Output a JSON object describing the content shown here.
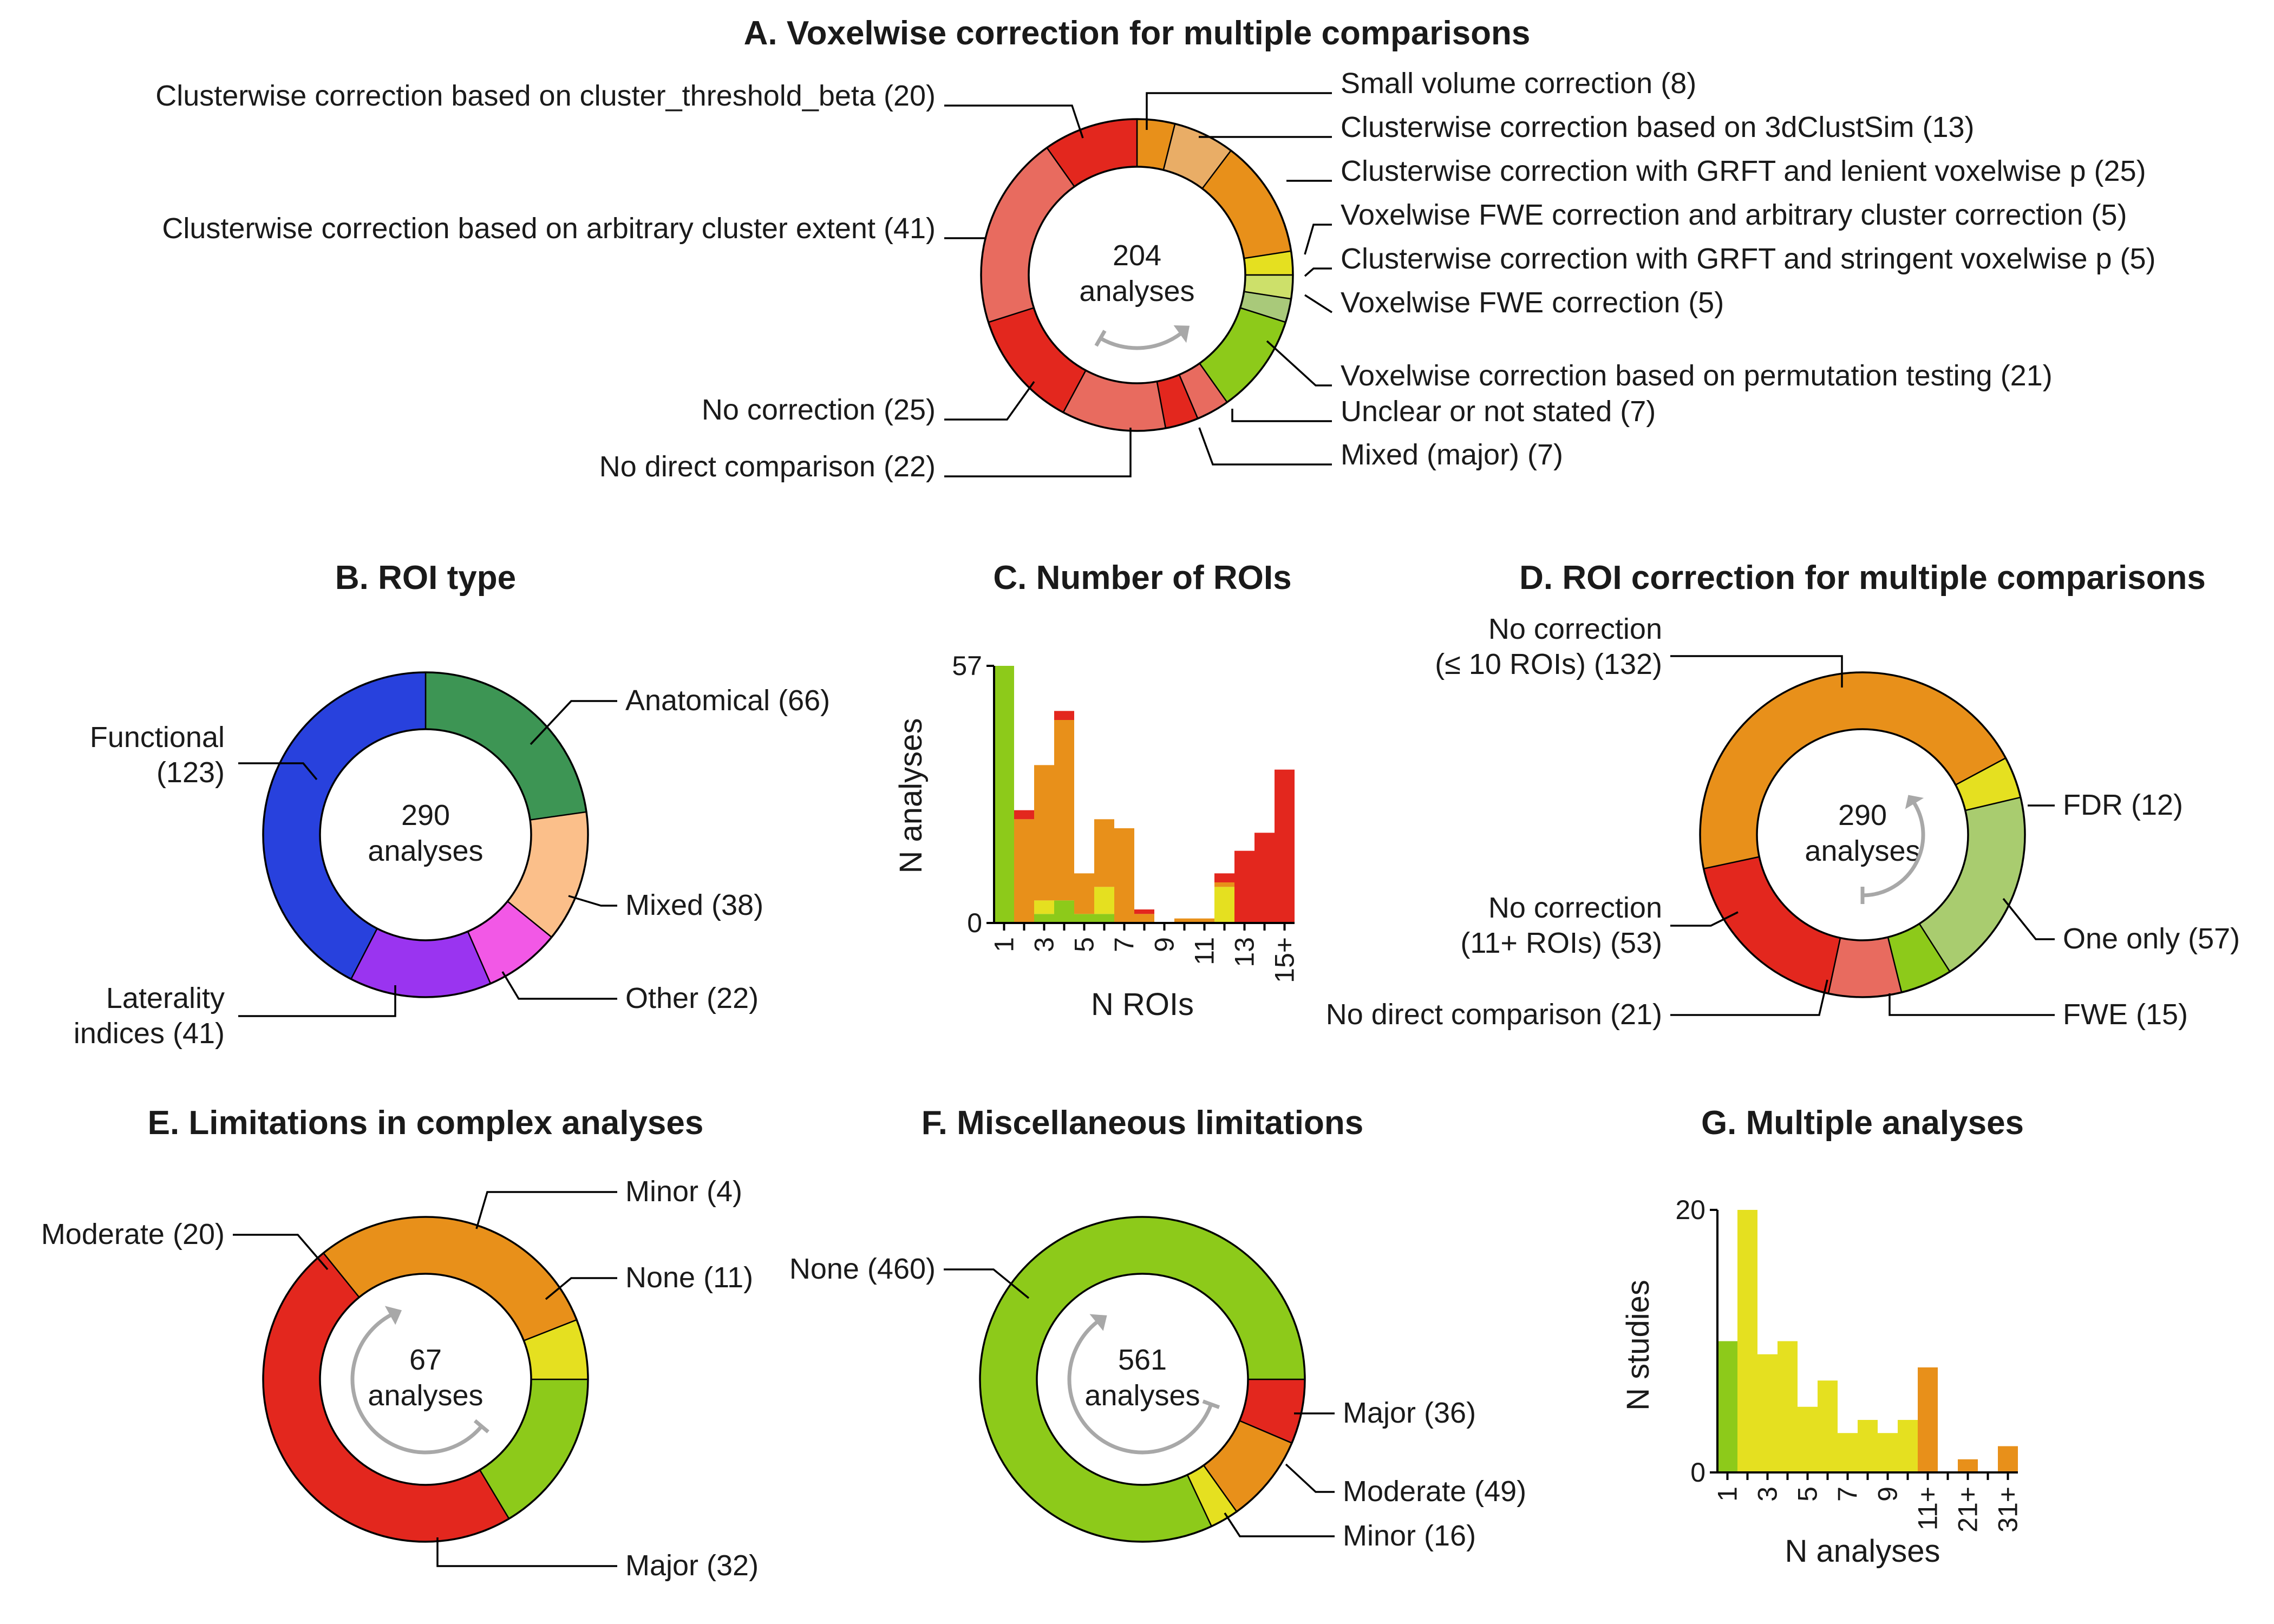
{
  "chart_data": [
    {
      "id": "A",
      "type": "pie",
      "title": "A. Voxelwise correction for multiple comparisons",
      "center_lines": [
        "204",
        "analyses"
      ],
      "slices": [
        {
          "label": "Small volume correction (8)",
          "value": 8,
          "color": "#e8901a"
        },
        {
          "label": "Clusterwise correction based on 3dClustSim (13)",
          "value": 13,
          "color": "#e9ad66"
        },
        {
          "label": "Clusterwise correction with GRFT and lenient voxelwise p (25)",
          "value": 25,
          "color": "#e8901a"
        },
        {
          "label": "Voxelwise FWE correction and arbitrary cluster correction (5)",
          "value": 5,
          "color": "#e5e020"
        },
        {
          "label": "Clusterwise correction with GRFT and stringent voxelwise p (5)",
          "value": 5,
          "color": "#cde06a"
        },
        {
          "label": "Voxelwise FWE correction (5)",
          "value": 5,
          "color": "#a9c97a"
        },
        {
          "label": "Voxelwise correction based on permutation testing (21)",
          "value": 21,
          "color": "#8dca1a"
        },
        {
          "label": "Unclear or not stated (7)",
          "value": 7,
          "color": "#e86b5f"
        },
        {
          "label": "Mixed (major) (7)",
          "value": 7,
          "color": "#e3271e"
        },
        {
          "label": "No direct comparison (22)",
          "value": 22,
          "color": "#e86b5f"
        },
        {
          "label": "No correction (25)",
          "value": 25,
          "color": "#e3271e"
        },
        {
          "label": "Clusterwise correction based on arbitrary cluster extent (41)",
          "value": 41,
          "color": "#e86b5f"
        },
        {
          "label": "Clusterwise correction based on cluster_threshold_beta (20)",
          "value": 20,
          "color": "#e3271e"
        }
      ]
    },
    {
      "id": "B",
      "type": "pie",
      "title": "B. ROI type",
      "center_lines": [
        "290",
        "analyses"
      ],
      "slices": [
        {
          "label": "Anatomical (66)",
          "value": 66,
          "color": "#3d9554"
        },
        {
          "label": "Mixed (38)",
          "value": 38,
          "color": "#fbbf8a"
        },
        {
          "label": "Other (22)",
          "value": 22,
          "color": "#f258e6"
        },
        {
          "label_lines": [
            "Laterality",
            "indices (41)"
          ],
          "value": 41,
          "color": "#9a34f0"
        },
        {
          "label_lines": [
            "Functional",
            "(123)"
          ],
          "value": 123,
          "color": "#2841dd"
        }
      ]
    },
    {
      "id": "C",
      "type": "bar",
      "stacked": true,
      "title": "C. Number of ROIs",
      "xlabel": "N ROIs",
      "ylabel": "N analyses",
      "ylim": [
        0,
        57
      ],
      "yticks": [
        "0",
        "57"
      ],
      "categories": [
        "1",
        "2",
        "3",
        "4",
        "5",
        "6",
        "7",
        "8",
        "9",
        "10",
        "11",
        "12",
        "13",
        "14",
        "15+"
      ],
      "xtick_labels": [
        "1",
        "",
        "3",
        "",
        "5",
        "",
        "7",
        "",
        "9",
        "",
        "11",
        "",
        "13",
        "",
        "15+"
      ],
      "series": [
        {
          "color": "#8dca1a",
          "values": [
            57,
            0,
            2,
            5,
            2,
            2,
            0,
            0,
            0,
            0,
            0,
            0,
            0,
            0,
            0
          ]
        },
        {
          "color": "#e5e020",
          "values": [
            0,
            0,
            3,
            0,
            0,
            6,
            0,
            0,
            0,
            0,
            0,
            8,
            0,
            0,
            0
          ]
        },
        {
          "color": "#e8901a",
          "values": [
            0,
            23,
            30,
            40,
            9,
            15,
            21,
            2,
            0,
            1,
            1,
            1,
            0,
            0,
            0
          ]
        },
        {
          "color": "#e3271e",
          "values": [
            0,
            2,
            0,
            2,
            0,
            0,
            0,
            1,
            0,
            0,
            0,
            2,
            16,
            20,
            34
          ]
        }
      ]
    },
    {
      "id": "D",
      "type": "pie",
      "title": "D. ROI correction for multiple comparisons",
      "center_lines": [
        "290",
        "analyses"
      ],
      "slices": [
        {
          "label": "FDR (12)",
          "value": 12,
          "color": "#e5e020"
        },
        {
          "label": "One only (57)",
          "value": 57,
          "color": "#a9cc6f"
        },
        {
          "label": "FWE (15)",
          "value": 15,
          "color": "#8dca1a"
        },
        {
          "label": "No direct comparison (21)",
          "value": 21,
          "color": "#e86b5f"
        },
        {
          "label_lines": [
            "No correction",
            "(11+ ROIs) (53)"
          ],
          "value": 53,
          "color": "#e3271e"
        },
        {
          "label_lines": [
            "No correction",
            "(≤ 10 ROIs) (132)"
          ],
          "value": 132,
          "color": "#e8901a"
        }
      ]
    },
    {
      "id": "E",
      "type": "pie",
      "title": "E. Limitations in complex analyses",
      "center_lines": [
        "67",
        "analyses"
      ],
      "slices": [
        {
          "label": "None (11)",
          "value": 11,
          "color": "#8dca1a"
        },
        {
          "label": "Major (32)",
          "value": 32,
          "color": "#e3271e"
        },
        {
          "label": "Moderate (20)",
          "value": 20,
          "color": "#e8901a"
        },
        {
          "label": "Minor (4)",
          "value": 4,
          "color": "#e5e020"
        }
      ]
    },
    {
      "id": "F",
      "type": "pie",
      "title": "F. Miscellaneous limitations",
      "center_lines": [
        "561",
        "analyses"
      ],
      "slices": [
        {
          "label": "Major (36)",
          "value": 36,
          "color": "#e3271e"
        },
        {
          "label": "Moderate (49)",
          "value": 49,
          "color": "#e8901a"
        },
        {
          "label": "Minor (16)",
          "value": 16,
          "color": "#e5e020"
        },
        {
          "label": "None (460)",
          "value": 460,
          "color": "#8dca1a"
        }
      ]
    },
    {
      "id": "G",
      "type": "bar",
      "title": "G. Multiple analyses",
      "xlabel": "N analyses",
      "ylabel": "N studies",
      "ylim": [
        0,
        20
      ],
      "yticks": [
        "0",
        "20"
      ],
      "categories": [
        "1",
        "2",
        "3",
        "4",
        "5",
        "6",
        "7",
        "8",
        "9",
        "10",
        "11+",
        "",
        "21+",
        "",
        "31+"
      ],
      "xtick_labels": [
        "1",
        "",
        "3",
        "",
        "5",
        "",
        "7",
        "",
        "9",
        "",
        "11+",
        "",
        "21+",
        "",
        "31+"
      ],
      "values": [
        10,
        20,
        9,
        10,
        5,
        7,
        3,
        4,
        3,
        4,
        8,
        0,
        1,
        0,
        2
      ],
      "colors": [
        "#8dca1a",
        "#e5e020",
        "#e5e020",
        "#e5e020",
        "#e5e020",
        "#e5e020",
        "#e5e020",
        "#e5e020",
        "#e5e020",
        "#e5e020",
        "#e8901a",
        "#e8901a",
        "#e8901a",
        "#e8901a",
        "#e8901a"
      ]
    }
  ]
}
